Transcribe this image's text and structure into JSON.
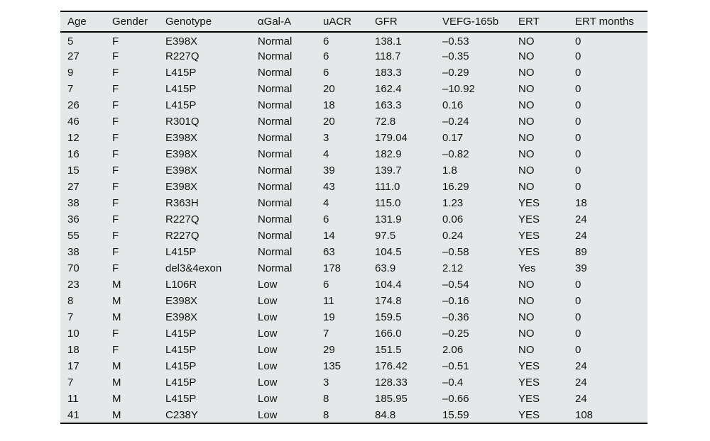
{
  "table": {
    "columns": [
      "Age",
      "Gender",
      "Genotype",
      "αGal-A",
      "uACR",
      "GFR",
      "VEFG-165b",
      "ERT",
      "ERT months"
    ],
    "rows": [
      [
        "5",
        "F",
        "E398X",
        "Normal",
        "6",
        "138.1",
        "–0.53",
        "NO",
        "0"
      ],
      [
        "27",
        "F",
        "R227Q",
        "Normal",
        "6",
        "118.7",
        "–0.35",
        "NO",
        "0"
      ],
      [
        "9",
        "F",
        "L415P",
        "Normal",
        "6",
        "183.3",
        "–0.29",
        "NO",
        "0"
      ],
      [
        "7",
        "F",
        "L415P",
        "Normal",
        "20",
        "162.4",
        "–10.92",
        "NO",
        "0"
      ],
      [
        "26",
        "F",
        "L415P",
        "Normal",
        "18",
        "163.3",
        "0.16",
        "NO",
        "0"
      ],
      [
        "46",
        "F",
        "R301Q",
        "Normal",
        "20",
        "72.8",
        "–0.24",
        "NO",
        "0"
      ],
      [
        "12",
        "F",
        "E398X",
        "Normal",
        "3",
        "179.04",
        "0.17",
        "NO",
        "0"
      ],
      [
        "16",
        "F",
        "E398X",
        "Normal",
        "4",
        "182.9",
        "–0.82",
        "NO",
        "0"
      ],
      [
        "15",
        "F",
        "E398X",
        "Normal",
        "39",
        "139.7",
        "1.8",
        "NO",
        "0"
      ],
      [
        "27",
        "F",
        "E398X",
        "Normal",
        "43",
        "111.0",
        "16.29",
        "NO",
        "0"
      ],
      [
        "38",
        "F",
        "R363H",
        "Normal",
        "4",
        "115.0",
        "1.23",
        "YES",
        "18"
      ],
      [
        "36",
        "F",
        "R227Q",
        "Normal",
        "6",
        "131.9",
        "0.06",
        "YES",
        "24"
      ],
      [
        "55",
        "F",
        "R227Q",
        "Normal",
        "14",
        "97.5",
        "0.24",
        "YES",
        "24"
      ],
      [
        "38",
        "F",
        "L415P",
        "Normal",
        "63",
        "104.5",
        "–0.58",
        "YES",
        "89"
      ],
      [
        "70",
        "F",
        "del3&4exon",
        "Normal",
        "178",
        "63.9",
        "2.12",
        "Yes",
        "39"
      ],
      [
        "23",
        "M",
        "L106R",
        "Low",
        "6",
        "104.4",
        "–0.54",
        "NO",
        "0"
      ],
      [
        "8",
        "M",
        "E398X",
        "Low",
        "11",
        "174.8",
        "–0.16",
        "NO",
        "0"
      ],
      [
        "7",
        "M",
        "E398X",
        "Low",
        "19",
        "159.5",
        "–0.36",
        "NO",
        "0"
      ],
      [
        "10",
        "F",
        "L415P",
        "Low",
        "7",
        "166.0",
        "–0.25",
        "NO",
        "0"
      ],
      [
        "18",
        "F",
        "L415P",
        "Low",
        "29",
        "151.5",
        "2.06",
        "NO",
        "0"
      ],
      [
        "17",
        "M",
        "L415P",
        "Low",
        "135",
        "176.42",
        "–0.51",
        "YES",
        "24"
      ],
      [
        "7",
        "M",
        "L415P",
        "Low",
        "3",
        "128.33",
        "–0.4",
        "YES",
        "24"
      ],
      [
        "11",
        "M",
        "L415P",
        "Low",
        "8",
        "185.95",
        "–0.66",
        "YES",
        "24"
      ],
      [
        "41",
        "M",
        "C238Y",
        "Low",
        "8",
        "84.8",
        "15.59",
        "YES",
        "108"
      ]
    ]
  },
  "colors": {
    "table_background": "#e5e8e9",
    "border": "#000000",
    "text": "#141414",
    "page_background": "#ffffff"
  }
}
